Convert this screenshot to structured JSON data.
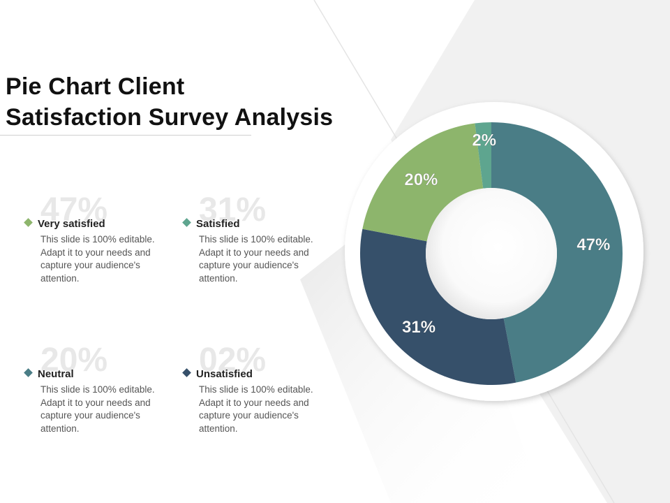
{
  "title": {
    "line1": "Pie Chart Client",
    "line2": "Satisfaction Survey Analysis"
  },
  "legend": [
    {
      "big": "47%",
      "label": "Very satisfied",
      "desc": "This slide is 100% editable. Adapt it to your needs and capture your audience's attention.",
      "color": "#8db56c"
    },
    {
      "big": "31%",
      "label": "Satisfied",
      "desc": "This slide is 100% editable. Adapt it to your needs and capture your audience's attention.",
      "color": "#5ea58f"
    },
    {
      "big": "20%",
      "label": "Neutral",
      "desc": "This slide is 100% editable. Adapt it to your needs and capture your audience's attention.",
      "color": "#4a7d86"
    },
    {
      "big": "02%",
      "label": "Unsatisfied",
      "desc": "This slide is 100% editable. Adapt it to your needs and capture your audience's attention.",
      "color": "#36506a"
    }
  ],
  "chart_data": {
    "type": "pie",
    "variant": "donut",
    "title": "",
    "slices": [
      {
        "value": 47,
        "label": "47%",
        "color": "#4a7d86"
      },
      {
        "value": 31,
        "label": "31%",
        "color": "#36506a"
      },
      {
        "value": 20,
        "label": "20%",
        "color": "#8db56c"
      },
      {
        "value": 2,
        "label": "2%",
        "color": "#5ea58f"
      }
    ],
    "start_angle": "top",
    "direction": "clockwise",
    "label_color": "#ffffff"
  }
}
